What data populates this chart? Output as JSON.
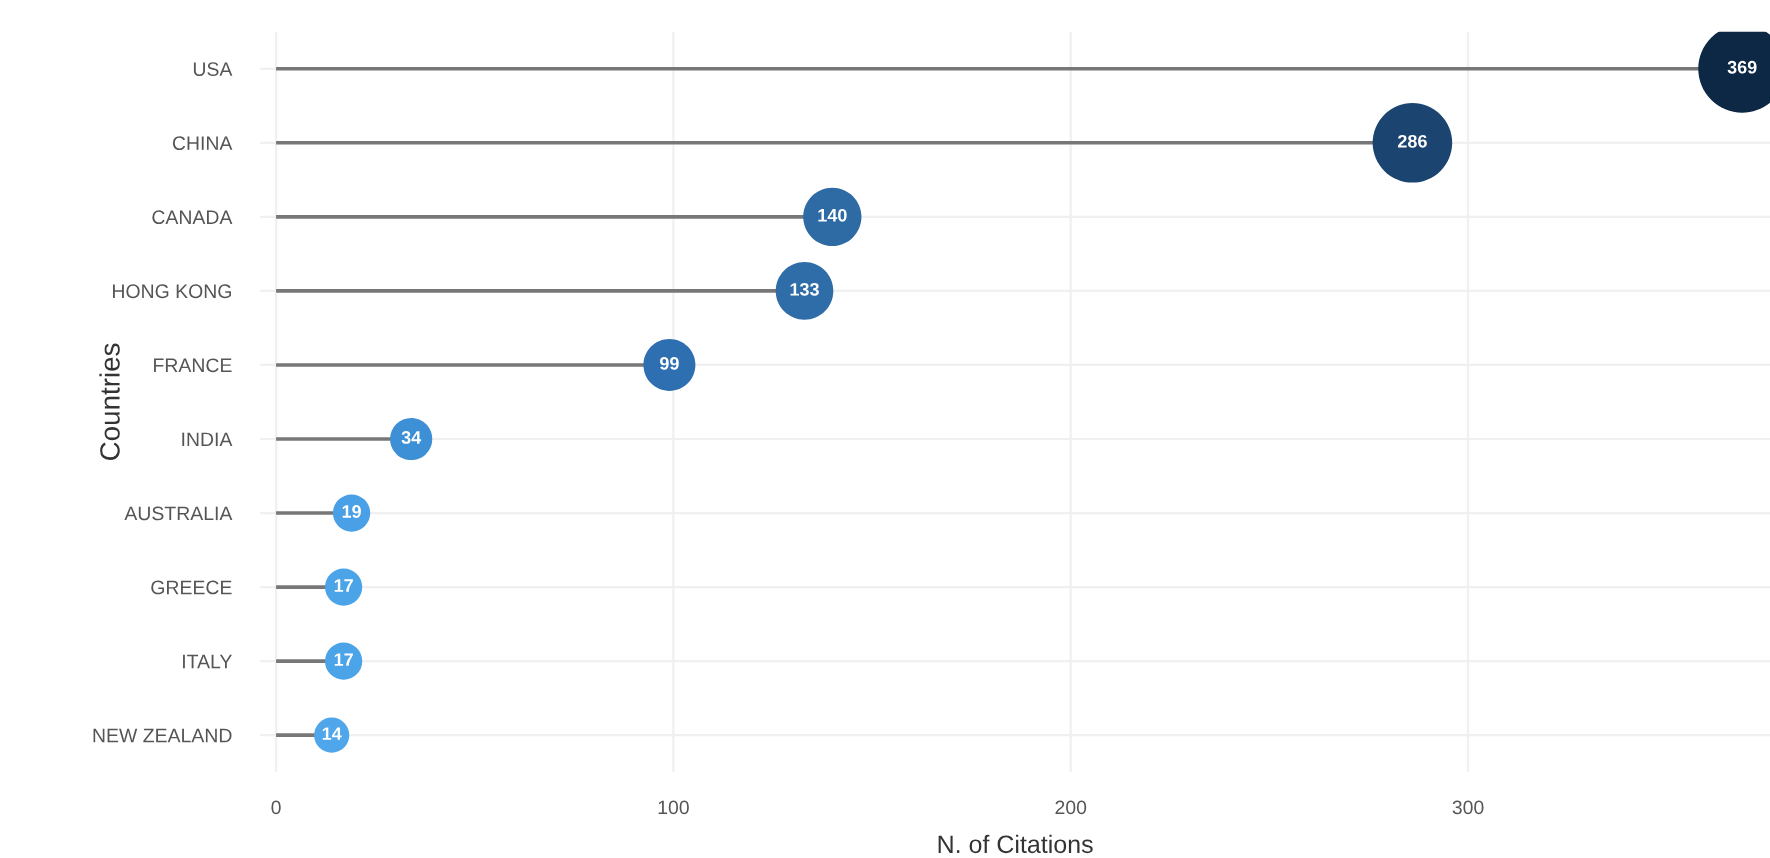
{
  "chart_data": {
    "type": "lollipop",
    "orientation": "horizontal",
    "xlabel": "N. of Citations",
    "ylabel": "Countries",
    "categories": [
      "USA",
      "CHINA",
      "CANADA",
      "HONG KONG",
      "FRANCE",
      "INDIA",
      "AUSTRALIA",
      "GREECE",
      "ITALY",
      "NEW ZEALAND"
    ],
    "values": [
      369,
      286,
      140,
      133,
      99,
      34,
      19,
      17,
      17,
      14
    ],
    "sizes": [
      1,
      0.82,
      0.44,
      0.43,
      0.35,
      0.23,
      0.18,
      0.18,
      0.18,
      0.16
    ],
    "colors": [
      "#0d2845",
      "#1b4470",
      "#2e6aa3",
      "#2f6da8",
      "#2d6fb0",
      "#3d8fd6",
      "#4aa0e6",
      "#4ba3e8",
      "#4ba3e8",
      "#4fa6ea"
    ],
    "xlim": [
      -4,
      376
    ],
    "xticks": [
      0,
      100,
      200,
      300
    ],
    "grid": true,
    "data_labels": true
  }
}
